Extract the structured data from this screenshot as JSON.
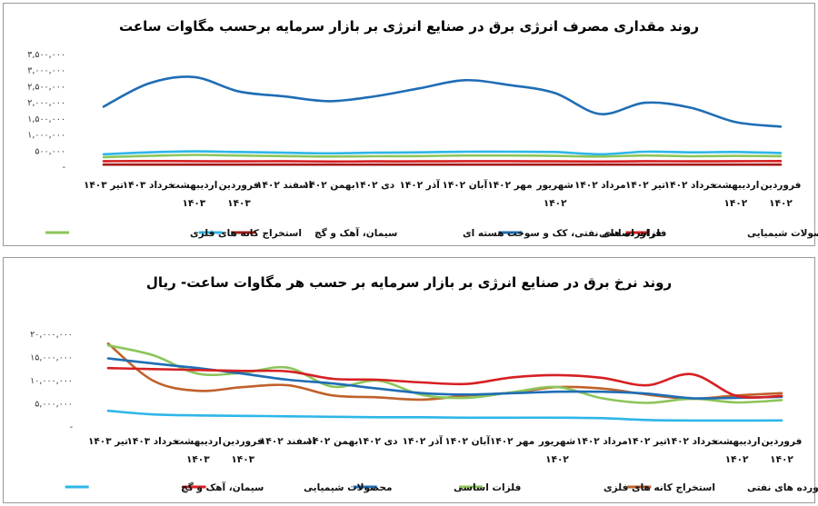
{
  "chart_data": [
    {
      "type": "line",
      "title": "روند مقداری مصرف انرژی برق در صنایع انرژی بر بازار سرمایه  برحسب مگاوات ساعت",
      "categories": [
        "فروردین ۱۴۰۲",
        "اردیبهشت ۱۴۰۲",
        "خرداد ۱۴۰۲",
        "تیر ۱۴۰۲",
        "مرداد ۱۴۰۲",
        "شهریور ۱۴۰۲",
        "مهر ۱۴۰۲",
        "آبان ۱۴۰۲",
        "آذر ۱۴۰۲",
        "دی ۱۴۰۲",
        "بهمن ۱۴۰۲",
        "اسفند ۱۴۰۲",
        "فروردین ۱۴۰۳",
        "اردیبهشت ۱۴۰۳",
        "خرداد ۱۴۰۳",
        "تیر ۱۴۰۳"
      ],
      "x_axis_direction": "right-to-left",
      "y_ticks": [
        "-",
        "۵۰۰,۰۰۰",
        "۱,۰۰۰,۰۰۰",
        "۱,۵۰۰,۰۰۰",
        "۲,۰۰۰,۰۰۰",
        "۲,۵۰۰,۰۰۰",
        "۳,۰۰۰,۰۰۰",
        "۳,۵۰۰,۰۰۰"
      ],
      "ylim": [
        0,
        3500000
      ],
      "grid": false,
      "legend_position": "bottom",
      "series": [
        {
          "name": "محصولات شیمیایی",
          "color": "#d62023",
          "values": [
            190000,
            185000,
            180000,
            185000,
            175000,
            180000,
            185000,
            185000,
            180000,
            180000,
            175000,
            185000,
            180000,
            185000,
            190000,
            185000
          ]
        },
        {
          "name": "فلزات اساسی",
          "color": "#1f6db5",
          "values": [
            1260000,
            1400000,
            1850000,
            2000000,
            1650000,
            2300000,
            2550000,
            2700000,
            2450000,
            2200000,
            2050000,
            2200000,
            2350000,
            2800000,
            2600000,
            1880000
          ]
        },
        {
          "name": "فراورده های نفتی، کک و سوخت هسته ای",
          "color": "#a31a17",
          "values": [
            80000,
            80000,
            80000,
            80000,
            80000,
            80000,
            80000,
            80000,
            80000,
            80000,
            80000,
            80000,
            80000,
            80000,
            80000,
            80000
          ]
        },
        {
          "name": "سیمان، آهک و گچ",
          "color": "#2eb6e8",
          "values": [
            440000,
            470000,
            460000,
            480000,
            400000,
            470000,
            480000,
            480000,
            460000,
            450000,
            430000,
            450000,
            470000,
            490000,
            460000,
            400000
          ]
        },
        {
          "name": "استخراج کانه های فلزی",
          "color": "#8cc55a",
          "values": [
            340000,
            350000,
            340000,
            360000,
            330000,
            350000,
            360000,
            360000,
            345000,
            340000,
            330000,
            345000,
            360000,
            380000,
            350000,
            310000
          ]
        }
      ],
      "legend_order": [
        "محصولات شیمیایی",
        "فلزات اساسی",
        "فراورده های نفتی، کک و سوخت هسته ای",
        "سیمان، آهک و گچ",
        "استخراج کانه های فلزی"
      ]
    },
    {
      "type": "line",
      "title": "روند نرخ برق در صنایع انرژی بر بازار سرمایه بر حسب هر مگاوات ساعت- ریال",
      "categories": [
        "فروردین ۱۴۰۲",
        "اردیبهشت ۱۴۰۲",
        "خرداد ۱۴۰۲",
        "تیر ۱۴۰۲",
        "مرداد ۱۴۰۲",
        "شهریور ۱۴۰۲",
        "مهر ۱۴۰۲",
        "آبان ۱۴۰۲",
        "آذر ۱۴۰۲",
        "دی ۱۴۰۲",
        "بهمن ۱۴۰۲",
        "اسفند ۱۴۰۲",
        "فروردین ۱۴۰۳",
        "اردیبهشت ۱۴۰۳",
        "خرداد ۱۴۰۳",
        "تیر ۱۴۰۳"
      ],
      "x_axis_direction": "right-to-left",
      "y_ticks": [
        "-",
        "۵,۰۰۰,۰۰۰",
        "۱۰,۰۰۰,۰۰۰",
        "۱۵,۰۰۰,۰۰۰",
        "۲۰,۰۰۰,۰۰۰"
      ],
      "ylim": [
        0,
        20000000
      ],
      "grid": false,
      "legend_position": "bottom",
      "series": [
        {
          "name": "فرآورده های نفتی",
          "color": "#c0612b",
          "values": [
            7300000,
            6800000,
            6100000,
            7000000,
            8300000,
            8600000,
            7400000,
            6800000,
            5900000,
            6400000,
            6800000,
            9000000,
            8600000,
            7800000,
            10000000,
            18000000
          ]
        },
        {
          "name": "استخراج کانه های فلزی",
          "color": "#8cc55a",
          "values": [
            5800000,
            5300000,
            6100000,
            5200000,
            6200000,
            8600000,
            7500000,
            6300000,
            6900000,
            10000000,
            8700000,
            12800000,
            11700000,
            11500000,
            15500000,
            17600000
          ]
        },
        {
          "name": "فلزات اساسی",
          "color": "#1f6db5",
          "values": [
            6500000,
            6300000,
            6200000,
            7200000,
            7600000,
            7600000,
            7300000,
            7000000,
            7300000,
            8300000,
            9400000,
            10200000,
            11500000,
            12700000,
            13700000,
            14800000
          ]
        },
        {
          "name": "محصولات شیمیایی",
          "color": "#d62023",
          "values": [
            6700000,
            6700000,
            11400000,
            9000000,
            10600000,
            11200000,
            10700000,
            9300000,
            9600000,
            10200000,
            10400000,
            12000000,
            12100000,
            12300000,
            12500000,
            12700000
          ]
        },
        {
          "name": "سیمان، آهک و گچ",
          "color": "#2eb6e8",
          "values": [
            1400000,
            1400000,
            1400000,
            1500000,
            1900000,
            2000000,
            2000000,
            2000000,
            2100000,
            2100000,
            2200000,
            2300000,
            2400000,
            2500000,
            2700000,
            3500000
          ]
        }
      ],
      "legend_order": [
        "فرآورده های نفتی",
        "استخراج کانه های فلزی",
        "فلزات اساسی",
        "محصولات شیمیایی",
        "سیمان، آهک و گچ"
      ]
    }
  ]
}
